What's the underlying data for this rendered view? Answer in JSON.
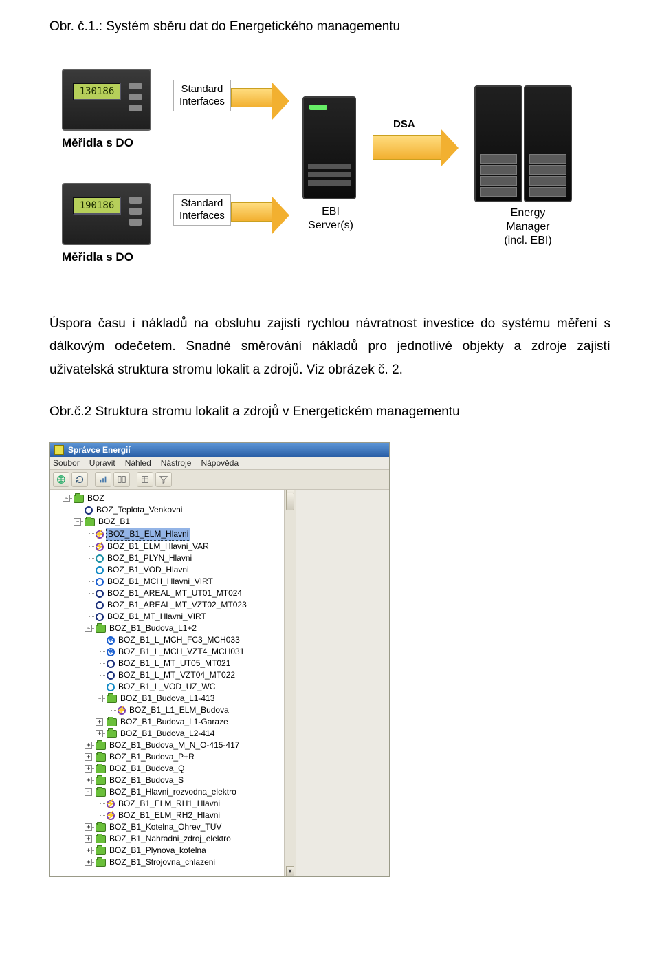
{
  "caption1": "Obr. č.1.: Systém sběru dat do Energetického managementu",
  "diagram1": {
    "meter_top_lcd": "130186",
    "meter_bot_lcd": "190186",
    "meter_label": "Měřidla s DO",
    "box_std_if": "Standard\nInterfaces",
    "arrow_dsa": "DSA",
    "ebi_label": "EBI\nServer(s)",
    "energy_label": "Energy\nManager\n(incl. EBI)",
    "colors": {
      "meter_bg_top": "#3a3a3a",
      "meter_bg_bot": "#1f1f1f",
      "lcd": "#b6cf5a",
      "arrow_top": "#ffdd80",
      "arrow_bot": "#f2b030",
      "server": "#181818"
    }
  },
  "paragraph": "Úspora času i nákladů na obsluhu zajistí rychlou návratnost investice do systému měření s dálkovým odečetem. Snadné směrování nákladů pro jednotlivé objekty a zdroje zajistí uživatelská struktura stromu lokalit a zdrojů. Viz obrázek č. 2.",
  "caption2": "Obr.č.2 Struktura stromu lokalit a zdrojů v Energetickém managementu",
  "app": {
    "title": "Správce Energií",
    "menu": [
      "Soubor",
      "Upravit",
      "Náhled",
      "Nástroje",
      "Nápověda"
    ],
    "toolbar_icons": [
      "world-icon",
      "refresh-icon",
      "chart-icon",
      "compare-icon",
      "settings-icon",
      "filter-icon",
      "gear-icon"
    ],
    "tree": {
      "root": "BOZ",
      "root_children": [
        {
          "icon": "navy",
          "label": "BOZ_Teplota_Venkovni"
        },
        {
          "icon": "folder",
          "label": "BOZ_B1",
          "exp": "-",
          "children": [
            {
              "icon": "purple",
              "label": "BOZ_B1_ELM_Hlavni",
              "selected": true,
              "bolt": true
            },
            {
              "icon": "purple",
              "label": "BOZ_B1_ELM_Hlavni_VAR",
              "bolt": true
            },
            {
              "icon": "teal",
              "label": "BOZ_B1_PLYN_Hlavni"
            },
            {
              "icon": "cyan",
              "label": "BOZ_B1_VOD_Hlavni"
            },
            {
              "icon": "blue",
              "label": "BOZ_B1_MCH_Hlavni_VIRT"
            },
            {
              "icon": "navy",
              "label": "BOZ_B1_AREAL_MT_UT01_MT024"
            },
            {
              "icon": "navy",
              "label": "BOZ_B1_AREAL_MT_VZT02_MT023"
            },
            {
              "icon": "navy",
              "label": "BOZ_B1_MT_Hlavni_VIRT"
            },
            {
              "icon": "folder",
              "label": "BOZ_B1_Budova_L1+2",
              "exp": "-",
              "children": [
                {
                  "icon": "blue",
                  "label": "BOZ_B1_L_MCH_FC3_MCH033",
                  "star": true
                },
                {
                  "icon": "blue",
                  "label": "BOZ_B1_L_MCH_VZT4_MCH031",
                  "star": true
                },
                {
                  "icon": "navy",
                  "label": "BOZ_B1_L_MT_UT05_MT021"
                },
                {
                  "icon": "navy",
                  "label": "BOZ_B1_L_MT_VZT04_MT022"
                },
                {
                  "icon": "cyan",
                  "label": "BOZ_B1_L_VOD_UZ_WC"
                },
                {
                  "icon": "folder",
                  "label": "BOZ_B1_Budova_L1-413",
                  "exp": "-",
                  "children": [
                    {
                      "icon": "purple",
                      "label": "BOZ_B1_L1_ELM_Budova",
                      "bolt": true
                    }
                  ]
                },
                {
                  "icon": "folder",
                  "label": "BOZ_B1_Budova_L1-Garaze",
                  "exp": "+"
                },
                {
                  "icon": "folder",
                  "label": "BOZ_B1_Budova_L2-414",
                  "exp": "+"
                }
              ]
            },
            {
              "icon": "folder",
              "label": "BOZ_B1_Budova_M_N_O-415-417",
              "exp": "+"
            },
            {
              "icon": "folder",
              "label": "BOZ_B1_Budova_P+R",
              "exp": "+"
            },
            {
              "icon": "folder",
              "label": "BOZ_B1_Budova_Q",
              "exp": "+"
            },
            {
              "icon": "folder",
              "label": "BOZ_B1_Budova_S",
              "exp": "+"
            },
            {
              "icon": "folder",
              "label": "BOZ_B1_Hlavni_rozvodna_elektro",
              "exp": "-",
              "children": [
                {
                  "icon": "purple",
                  "label": "BOZ_B1_ELM_RH1_Hlavni",
                  "bolt": true
                },
                {
                  "icon": "purple",
                  "label": "BOZ_B1_ELM_RH2_Hlavni",
                  "bolt": true
                }
              ]
            },
            {
              "icon": "folder",
              "label": "BOZ_B1_Kotelna_Ohrev_TUV",
              "exp": "+"
            },
            {
              "icon": "folder",
              "label": "BOZ_B1_Nahradni_zdroj_elektro",
              "exp": "+"
            },
            {
              "icon": "folder",
              "label": "BOZ_B1_Plynova_kotelna",
              "exp": "+"
            },
            {
              "icon": "folder",
              "label": "BOZ_B1_Strojovna_chlazeni",
              "exp": "+"
            }
          ]
        }
      ]
    }
  }
}
